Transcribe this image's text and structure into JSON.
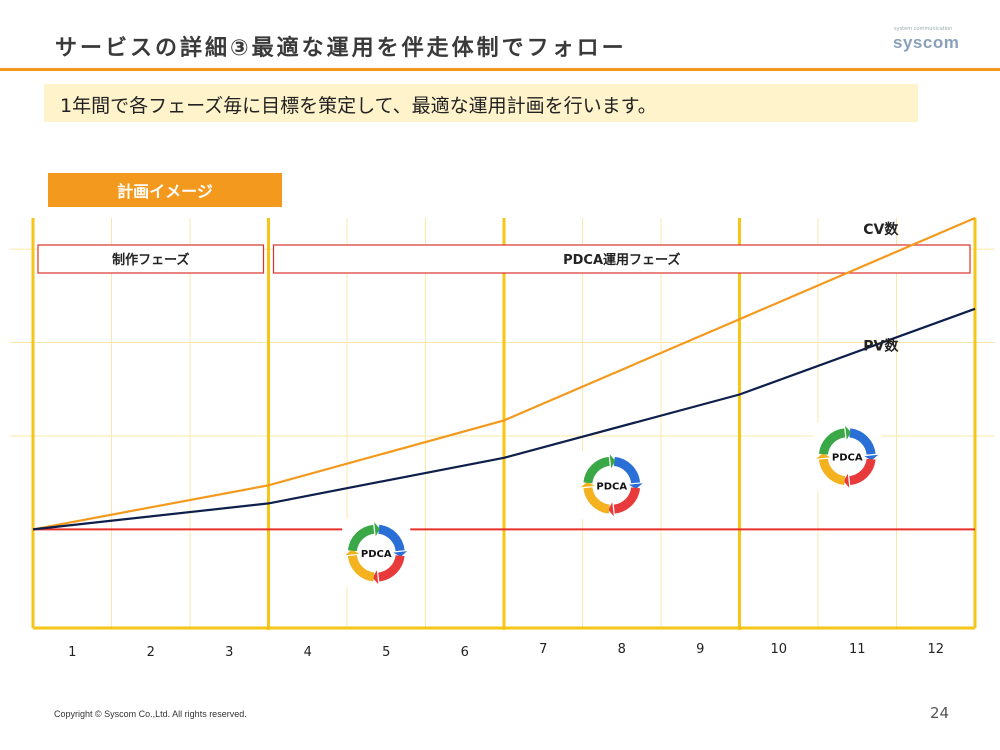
{
  "slide": {
    "title": "サービスの詳細③最適な運用を伴走体制でフォロー",
    "brand_tagline": "system communication",
    "brand": "syscom",
    "lead": "1年間で各フェーズ毎に目標を策定して、最適な運用計画を行います。",
    "plan_label": "計画イメージ",
    "footer": "Copyright © Syscom Co.,Ltd. All rights reserved.",
    "page_number": "24"
  },
  "colors": {
    "accent_orange": "#f39a1e",
    "lead_bg": "#fff3cc",
    "cv_line": "#f39a1e",
    "pv_line": "#0d1f4a",
    "baseline": "#e8302a",
    "divider_yellow": "#f5c518",
    "phase_border": "#d9342b"
  },
  "chart_data": {
    "type": "line",
    "x": [
      1,
      2,
      3,
      4,
      5,
      6,
      7,
      8,
      9,
      10,
      11,
      12
    ],
    "x_tick_labels": [
      "1",
      "2",
      "3",
      "4",
      "5",
      "6",
      "7",
      "8",
      "9",
      "10",
      "11",
      "12"
    ],
    "phase_boundaries": [
      3.5,
      6.5,
      9.5
    ],
    "phases": [
      {
        "label": "制作フェーズ",
        "start": 1,
        "end": 3
      },
      {
        "label": "PDCA運用フェーズ",
        "start": 4,
        "end": 12
      }
    ],
    "series": [
      {
        "name": "CV数",
        "color": "#f39a1e",
        "points": [
          [
            0.5,
            0.0
          ],
          [
            3.5,
            0.85
          ],
          [
            6.5,
            2.1
          ],
          [
            9.5,
            4.05
          ],
          [
            12.5,
            6.0
          ]
        ]
      },
      {
        "name": "PV数",
        "color": "#0d1f4a",
        "points": [
          [
            0.5,
            0.0
          ],
          [
            3.5,
            0.5
          ],
          [
            6.5,
            1.38
          ],
          [
            9.5,
            2.6
          ],
          [
            12.5,
            4.25
          ]
        ]
      }
    ],
    "baseline": {
      "value": 0.0,
      "color": "#e8302a"
    },
    "pdca_badges": [
      {
        "x": 5.0,
        "level": -0.15,
        "text": "PDCA",
        "segments": [
          "PLAN",
          "DO",
          "CHECK",
          "ACTION"
        ]
      },
      {
        "x": 8.0,
        "level": 0.85,
        "text": "PDCA",
        "segments": [
          "PLAN",
          "DO",
          "CHECK",
          "ACTION"
        ]
      },
      {
        "x": 11.0,
        "level": 1.4,
        "text": "PDCA",
        "segments": [
          "PLAN",
          "DO",
          "CHECK",
          "ACTION"
        ]
      }
    ],
    "xlim": [
      0.5,
      12.5
    ],
    "ylim": [
      -1.9,
      6.0
    ],
    "grid": true,
    "legend": "inline labels"
  }
}
